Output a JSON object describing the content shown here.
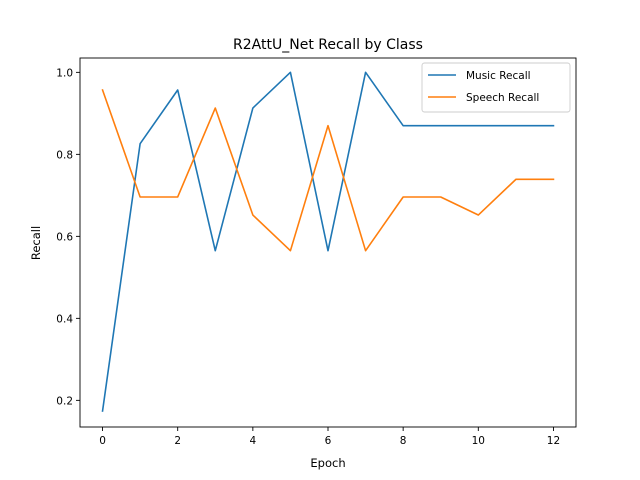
{
  "chart_data": {
    "type": "line",
    "title": "R2AttU_Net Recall by Class",
    "xlabel": "Epoch",
    "ylabel": "Recall",
    "x": [
      0,
      1,
      2,
      3,
      4,
      5,
      6,
      7,
      8,
      9,
      10,
      11,
      12
    ],
    "xlim": [
      -0.6,
      12.6
    ],
    "ylim": [
      0.135,
      1.035
    ],
    "xticks": [
      0,
      2,
      4,
      6,
      8,
      10,
      12
    ],
    "yticks": [
      0.2,
      0.4,
      0.6,
      0.8,
      1.0
    ],
    "ytick_labels": [
      "0.2",
      "0.4",
      "0.6",
      "0.8",
      "1.0"
    ],
    "grid": false,
    "legend_position": "upper-right",
    "series": [
      {
        "name": "Music Recall",
        "color": "#1f77b4",
        "values": [
          0.174,
          0.826,
          0.957,
          0.565,
          0.913,
          1.0,
          0.565,
          1.0,
          0.87,
          0.87,
          0.87,
          0.87,
          0.87
        ]
      },
      {
        "name": "Speech Recall",
        "color": "#ff7f0e",
        "values": [
          0.957,
          0.696,
          0.696,
          0.913,
          0.652,
          0.565,
          0.87,
          0.565,
          0.696,
          0.696,
          0.652,
          0.739,
          0.739
        ]
      }
    ]
  }
}
